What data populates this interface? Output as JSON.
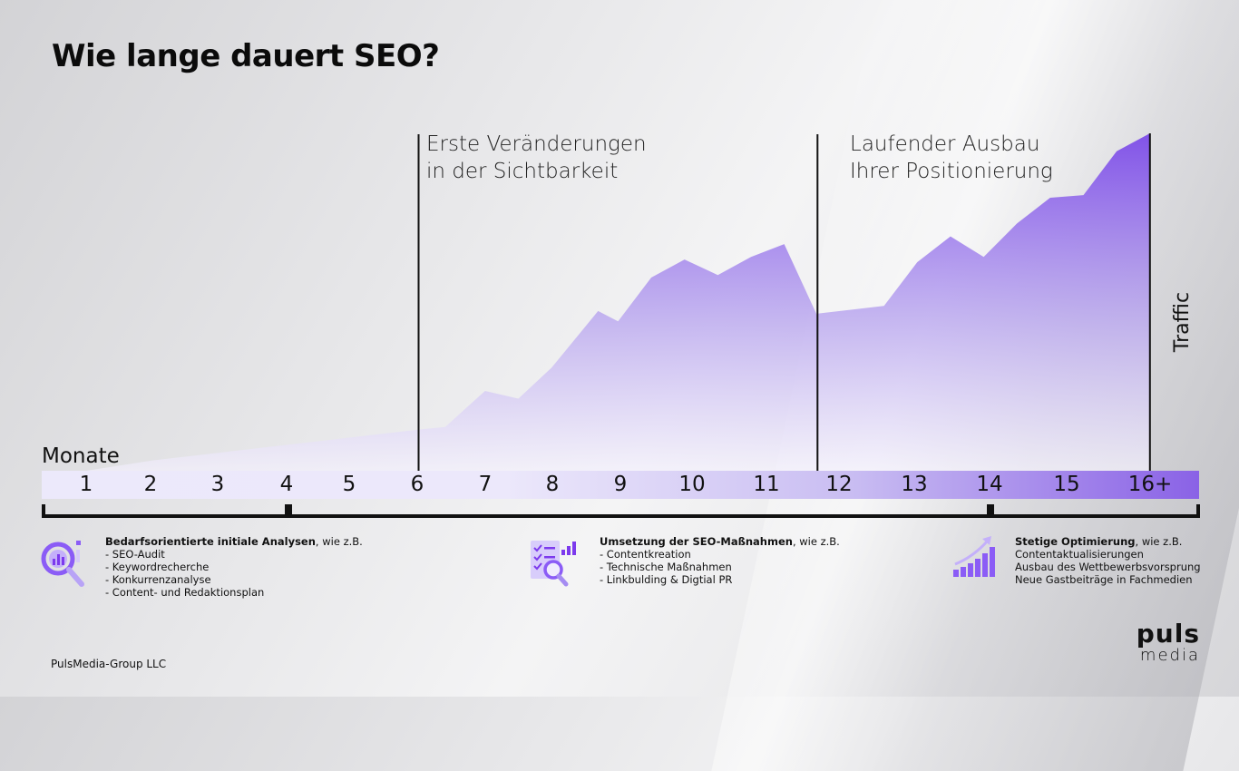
{
  "title": "Wie lange dauert SEO?",
  "chart_data": {
    "type": "area",
    "xlabel": "Monate",
    "ylabel": "Traffic",
    "categories": [
      "1",
      "2",
      "3",
      "4",
      "5",
      "6",
      "7",
      "8",
      "9",
      "10",
      "11",
      "12",
      "13",
      "14",
      "15",
      "16+"
    ],
    "x": [
      1,
      2,
      3,
      4,
      5,
      6,
      6.4,
      7,
      7.5,
      8,
      8.7,
      9,
      9.5,
      10,
      10.5,
      11,
      11.5,
      12,
      12,
      13,
      13.5,
      14,
      14.5,
      15,
      15.5,
      16,
      16.5,
      17
    ],
    "values": [
      0,
      4,
      7,
      10,
      13,
      16,
      17,
      31,
      28,
      40,
      62,
      58,
      75,
      82,
      76,
      83,
      88,
      60,
      61,
      64,
      81,
      91,
      83,
      96,
      106,
      107,
      124,
      131
    ],
    "series": [
      {
        "name": "Traffic"
      }
    ],
    "annotations": [
      {
        "at_month": 6,
        "text": "Erste Veränderungen\nin der Sichtbarkeit"
      },
      {
        "at_month": 12,
        "text": "Laufender Ausbau\nIhrer Positionierung"
      }
    ],
    "colors": {
      "fill_top": "#7c4be8",
      "fill_bottom": "#f1eefc",
      "axis_end": "#8a62e6"
    }
  },
  "phases": [
    {
      "heading": "Bedarfsorientierte initiale Analysen",
      "suffix": ", wie z.B.",
      "items": [
        "- SEO-Audit",
        "- Keywordrecherche",
        "- Konkurrenzanalyse",
        "- Content- und Redaktionsplan"
      ],
      "icon": "magnifier-analysis-icon"
    },
    {
      "heading": "Umsetzung der SEO-Maßnahmen",
      "suffix": ", wie z.B.",
      "items": [
        "- Contentkreation",
        "- Technische Maßnahmen",
        "- Linkbulding & Digtial PR"
      ],
      "icon": "checklist-report-icon"
    },
    {
      "heading": "Stetige Optimierung",
      "suffix": ", wie z.B.",
      "items": [
        "Contentaktualisierungen",
        "Ausbau des Wettbewerbsvorsprung",
        "Neue Gastbeiträge in Fachmedien"
      ],
      "icon": "growth-bars-icon"
    }
  ],
  "footer": "PulsMedia-Group LLC",
  "logo": {
    "line1": "puls",
    "line2": "media"
  }
}
